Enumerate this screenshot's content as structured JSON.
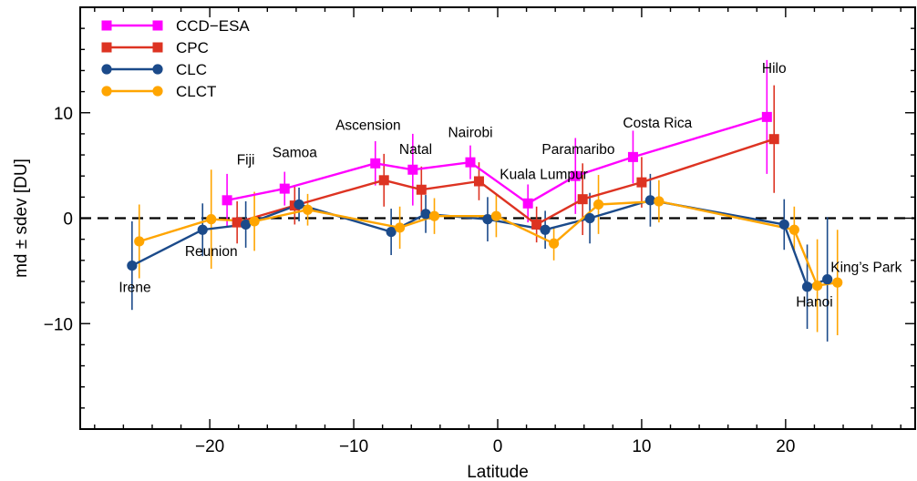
{
  "chart_data": {
    "type": "line",
    "title": "",
    "xlabel": "Latitude",
    "ylabel": "md ± sdev [DU]",
    "xlim": [
      -29,
      29
    ],
    "ylim": [
      -20,
      20
    ],
    "xticks": [
      -20,
      -10,
      0,
      10,
      20
    ],
    "yticks": [
      -10,
      0,
      10
    ],
    "x_tick_labels": [
      "−20",
      "−10",
      "0",
      "10",
      "20"
    ],
    "y_tick_labels": [
      "−10",
      "0",
      "10"
    ],
    "zero_line": true,
    "legend_position": "top-left",
    "series": [
      {
        "name": "CCD−ESA",
        "color": "#ff00ff",
        "marker": "square",
        "points": [
          {
            "x": -18.8,
            "y": 1.7,
            "err": 2.5
          },
          {
            "x": -14.8,
            "y": 2.8,
            "err": 1.6
          },
          {
            "x": -8.5,
            "y": 5.2,
            "err": 2.1
          },
          {
            "x": -5.9,
            "y": 4.6,
            "err": 3.4
          },
          {
            "x": -1.9,
            "y": 5.3,
            "err": 1.6
          },
          {
            "x": 2.1,
            "y": 1.4,
            "err": 1.8
          },
          {
            "x": 5.4,
            "y": 4.0,
            "err": 3.6
          },
          {
            "x": 9.4,
            "y": 5.8,
            "err": 2.5
          },
          {
            "x": 18.7,
            "y": 9.6,
            "err": 5.4
          }
        ]
      },
      {
        "name": "CPC",
        "color": "#dd3322",
        "marker": "square",
        "points": [
          {
            "x": -18.1,
            "y": -0.4,
            "err": 2.0
          },
          {
            "x": -14.1,
            "y": 1.2,
            "err": 1.8
          },
          {
            "x": -7.9,
            "y": 3.6,
            "err": 2.5
          },
          {
            "x": -5.3,
            "y": 2.7,
            "err": 2.2
          },
          {
            "x": -1.3,
            "y": 3.5,
            "err": 1.8
          },
          {
            "x": 2.7,
            "y": -0.6,
            "err": 1.7
          },
          {
            "x": 5.9,
            "y": 1.8,
            "err": 3.4
          },
          {
            "x": 10.0,
            "y": 3.4,
            "err": 2.4
          },
          {
            "x": 19.2,
            "y": 7.5,
            "err": 5.1
          }
        ]
      },
      {
        "name": "CLC",
        "color": "#1b4a8a",
        "marker": "circle",
        "points": [
          {
            "x": -25.4,
            "y": -4.5,
            "err": 4.2
          },
          {
            "x": -20.5,
            "y": -1.1,
            "err": 2.5
          },
          {
            "x": -17.5,
            "y": -0.6,
            "err": 2.2
          },
          {
            "x": -13.8,
            "y": 1.3,
            "err": 1.6
          },
          {
            "x": -7.4,
            "y": -1.3,
            "err": 2.2
          },
          {
            "x": -5.0,
            "y": 0.4,
            "err": 1.8
          },
          {
            "x": -0.7,
            "y": -0.1,
            "err": 2.1
          },
          {
            "x": 3.3,
            "y": -1.1,
            "err": 1.8
          },
          {
            "x": 6.4,
            "y": 0.0,
            "err": 2.4
          },
          {
            "x": 10.6,
            "y": 1.7,
            "err": 2.5
          },
          {
            "x": 19.9,
            "y": -0.6,
            "err": 2.4
          },
          {
            "x": 21.5,
            "y": -6.5,
            "err": 4.0
          },
          {
            "x": 22.9,
            "y": -5.8,
            "err": 5.9
          }
        ]
      },
      {
        "name": "CLCT",
        "color": "#ffa500",
        "marker": "circle",
        "points": [
          {
            "x": -24.9,
            "y": -2.2,
            "err": 3.5
          },
          {
            "x": -19.9,
            "y": -0.1,
            "err": 4.7
          },
          {
            "x": -16.9,
            "y": -0.3,
            "err": 2.8
          },
          {
            "x": -13.2,
            "y": 0.8,
            "err": 1.5
          },
          {
            "x": -6.8,
            "y": -0.9,
            "err": 2.0
          },
          {
            "x": -4.4,
            "y": 0.2,
            "err": 1.7
          },
          {
            "x": -0.1,
            "y": 0.2,
            "err": 2.0
          },
          {
            "x": 3.9,
            "y": -2.4,
            "err": 1.6
          },
          {
            "x": 7.0,
            "y": 1.3,
            "err": 2.8
          },
          {
            "x": 11.2,
            "y": 1.6,
            "err": 2.0
          },
          {
            "x": 20.6,
            "y": -1.1,
            "err": 2.2
          },
          {
            "x": 22.2,
            "y": -6.4,
            "err": 4.4
          },
          {
            "x": 23.6,
            "y": -6.1,
            "err": 5.0
          }
        ]
      }
    ],
    "annotations": [
      {
        "text": "Irene",
        "x": -25.2,
        "y": -7.0
      },
      {
        "text": "Reunion",
        "x": -19.9,
        "y": -3.6
      },
      {
        "text": "Fiji",
        "x": -17.5,
        "y": 5.1
      },
      {
        "text": "Samoa",
        "x": -14.1,
        "y": 5.8
      },
      {
        "text": "Ascension",
        "x": -9.0,
        "y": 8.4
      },
      {
        "text": "Natal",
        "x": -5.7,
        "y": 6.1
      },
      {
        "text": "Nairobi",
        "x": -1.9,
        "y": 7.7
      },
      {
        "text": "Kuala Lumpur",
        "x": 3.2,
        "y": 3.7
      },
      {
        "text": "Paramaribo",
        "x": 5.6,
        "y": 6.1
      },
      {
        "text": "Costa Rica",
        "x": 11.1,
        "y": 8.6
      },
      {
        "text": "Hilo",
        "x": 19.2,
        "y": 13.8
      },
      {
        "text": "Hanoi",
        "x": 22.0,
        "y": -8.4
      },
      {
        "text": "King’s Park",
        "x": 25.6,
        "y": -5.1
      }
    ]
  }
}
